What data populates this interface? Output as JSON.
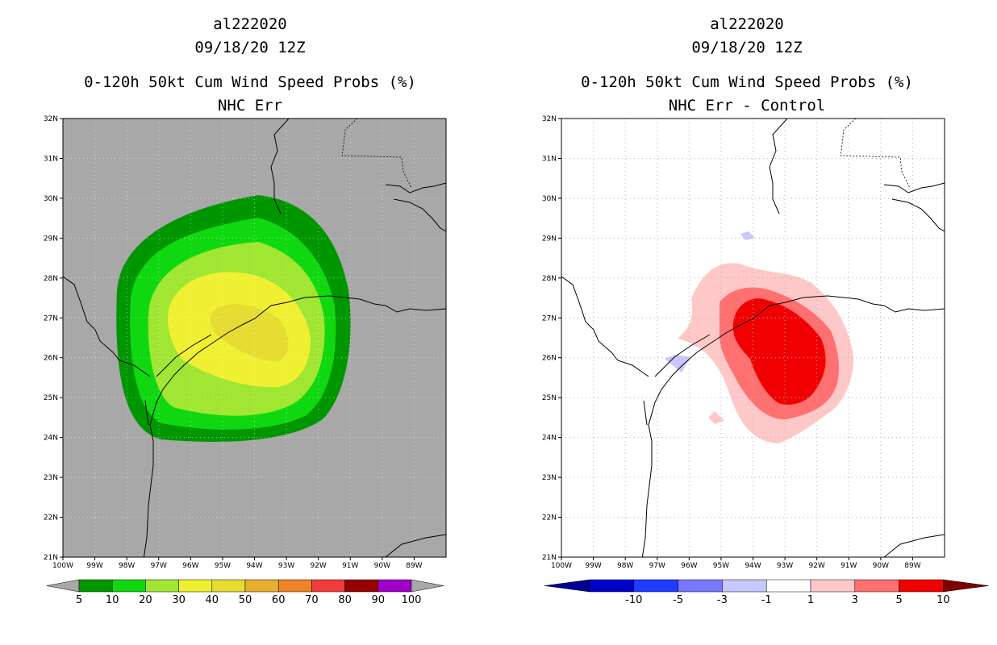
{
  "panels": [
    {
      "storm": "al222020",
      "datetime": "09/18/20 12Z",
      "product": "0-120h 50kt Cum Wind Speed Probs (%)",
      "subtitle": "NHC Err",
      "colors": {
        "land_bg": "#a8a8a8"
      },
      "colorbar": {
        "colors": [
          "#009600",
          "#10d810",
          "#a0e632",
          "#f0f032",
          "#e6dc32",
          "#e6af2d",
          "#f08228",
          "#f03c3c",
          "#960000",
          "#a000c8"
        ],
        "end_color": "#a8a8a8",
        "labels": [
          "5",
          "10",
          "20",
          "30",
          "40",
          "50",
          "60",
          "70",
          "80",
          "90",
          "100"
        ]
      }
    },
    {
      "storm": "al222020",
      "datetime": "09/18/20 12Z",
      "product": "0-120h 50kt Cum Wind Speed Probs (%)",
      "subtitle": "NHC Err - Control",
      "colorbar": {
        "colors": [
          "#0000c8",
          "#1e3cff",
          "#7878ff",
          "#c8c8ff",
          "#ffffff",
          "#ffc8c8",
          "#ff7070",
          "#f00000"
        ],
        "low_end_color": "#000096",
        "high_end_color": "#7f0000",
        "labels": [
          "-10",
          "-5",
          "-3",
          "-1",
          "1",
          "3",
          "5",
          "10"
        ]
      }
    }
  ],
  "axes": {
    "lat_labels": [
      "32N",
      "31N",
      "30N",
      "29N",
      "28N",
      "27N",
      "26N",
      "25N",
      "24N",
      "23N",
      "22N",
      "21N"
    ],
    "lon_labels": [
      "100W",
      "99W",
      "98W",
      "97W",
      "96W",
      "95W",
      "94W",
      "93W",
      "92W",
      "91W",
      "90W",
      "89W"
    ]
  }
}
